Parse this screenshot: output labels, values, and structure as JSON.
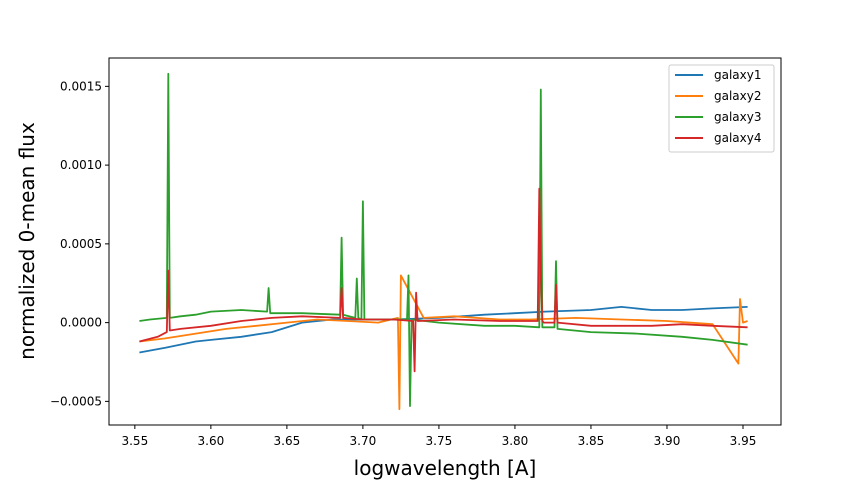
{
  "chart_data": {
    "type": "line",
    "title": "",
    "xlabel": "logwavelength [A]",
    "ylabel": "normalized 0-mean flux",
    "xlim": [
      3.533,
      3.975
    ],
    "ylim": [
      -0.00065,
      0.00168
    ],
    "xticks": [
      3.55,
      3.6,
      3.65,
      3.7,
      3.75,
      3.8,
      3.85,
      3.9,
      3.95
    ],
    "xtick_labels": [
      "3.55",
      "3.60",
      "3.65",
      "3.70",
      "3.75",
      "3.80",
      "3.85",
      "3.90",
      "3.95"
    ],
    "yticks": [
      -0.0005,
      0.0,
      0.0005,
      0.001,
      0.0015
    ],
    "ytick_labels": [
      "−0.0005",
      "0.0000",
      "0.0005",
      "0.0010",
      "0.0015"
    ],
    "grid": false,
    "legend_position": "top-right",
    "series": [
      {
        "name": "galaxy1",
        "color": "#1f77b4",
        "x": [
          3.553,
          3.57,
          3.59,
          3.6,
          3.62,
          3.64,
          3.66,
          3.68,
          3.7,
          3.72,
          3.75,
          3.78,
          3.8,
          3.82,
          3.85,
          3.87,
          3.89,
          3.91,
          3.93,
          3.953
        ],
        "y": [
          -0.00019,
          -0.00016,
          -0.00012,
          -0.00011,
          -9e-05,
          -6e-05,
          0.0,
          2e-05,
          2e-05,
          2e-05,
          3e-05,
          5e-05,
          6e-05,
          7e-05,
          8e-05,
          0.0001,
          8e-05,
          8e-05,
          9e-05,
          0.0001
        ]
      },
      {
        "name": "galaxy2",
        "color": "#ff7f0e",
        "x": [
          3.553,
          3.57,
          3.59,
          3.61,
          3.63,
          3.65,
          3.67,
          3.69,
          3.71,
          3.723,
          3.724,
          3.725,
          3.74,
          3.76,
          3.79,
          3.81,
          3.84,
          3.87,
          3.9,
          3.93,
          3.947,
          3.948,
          3.95,
          3.953
        ],
        "y": [
          -0.00012,
          -0.0001,
          -7e-05,
          -4e-05,
          -2e-05,
          0.0,
          2e-05,
          1e-05,
          0.0,
          3e-05,
          -0.00055,
          0.0003,
          3e-05,
          4e-05,
          2e-05,
          2e-05,
          3e-05,
          2e-05,
          1e-05,
          -1e-05,
          -0.00026,
          0.00015,
          0.0,
          1e-05
        ]
      },
      {
        "name": "galaxy3",
        "color": "#2ca02c",
        "x": [
          3.553,
          3.56,
          3.571,
          3.572,
          3.573,
          3.58,
          3.59,
          3.6,
          3.62,
          3.637,
          3.638,
          3.639,
          3.66,
          3.685,
          3.686,
          3.687,
          3.695,
          3.696,
          3.697,
          3.699,
          3.7,
          3.701,
          3.72,
          3.729,
          3.73,
          3.731,
          3.732,
          3.75,
          3.78,
          3.8,
          3.816,
          3.817,
          3.818,
          3.826,
          3.827,
          3.828,
          3.85,
          3.88,
          3.91,
          3.93,
          3.953
        ],
        "y": [
          1e-05,
          2e-05,
          3e-05,
          0.00158,
          3e-05,
          4e-05,
          5e-05,
          7e-05,
          8e-05,
          7e-05,
          0.00022,
          6e-05,
          6e-05,
          5e-05,
          0.00054,
          5e-05,
          3e-05,
          0.00028,
          3e-05,
          2e-05,
          0.00077,
          2e-05,
          2e-05,
          2e-05,
          0.0003,
          -0.00053,
          2e-05,
          0.0,
          -2e-05,
          -2e-05,
          -3e-05,
          0.00148,
          -3e-05,
          -3e-05,
          0.00039,
          -4e-05,
          -6e-05,
          -7e-05,
          -9e-05,
          -0.00011,
          -0.00014
        ]
      },
      {
        "name": "galaxy4",
        "color": "#d62728",
        "x": [
          3.553,
          3.565,
          3.571,
          3.572,
          3.573,
          3.58,
          3.6,
          3.62,
          3.64,
          3.66,
          3.685,
          3.686,
          3.687,
          3.7,
          3.72,
          3.733,
          3.734,
          3.735,
          3.736,
          3.737,
          3.76,
          3.79,
          3.815,
          3.816,
          3.817,
          3.818,
          3.819,
          3.826,
          3.827,
          3.828,
          3.85,
          3.87,
          3.89,
          3.91,
          3.93,
          3.953
        ],
        "y": [
          -0.00012,
          -9e-05,
          -6e-05,
          0.00033,
          -5e-05,
          -4e-05,
          -2e-05,
          1e-05,
          3e-05,
          4e-05,
          3e-05,
          0.00022,
          3e-05,
          2e-05,
          2e-05,
          1e-05,
          -0.00031,
          0.00019,
          1e-05,
          1e-05,
          2e-05,
          1e-05,
          1e-05,
          0.00085,
          0.00031,
          1e-05,
          0.0,
          0.0,
          0.00024,
          0.0,
          -2e-05,
          -2e-05,
          -2e-05,
          -1e-05,
          -2e-05,
          -3e-05
        ]
      }
    ]
  }
}
